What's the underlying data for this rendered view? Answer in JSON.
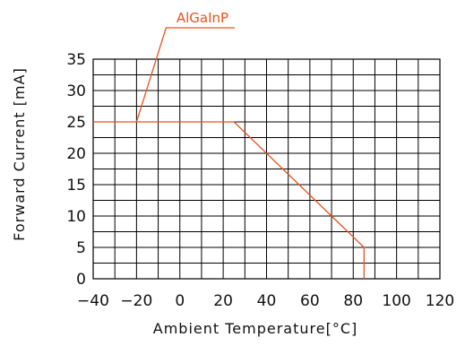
{
  "chart_data": {
    "type": "line",
    "title": "",
    "xlabel": "Ambient Temperature[°C]",
    "ylabel": "Forward Current [mA]",
    "xlim": [
      -40,
      120
    ],
    "ylim": [
      0,
      35
    ],
    "x_ticks": [
      -40,
      -20,
      0,
      20,
      40,
      60,
      80,
      100,
      120
    ],
    "x_tick_labels": [
      "−40",
      "−20",
      "0",
      "20",
      "40",
      "60",
      "80",
      "100",
      "120"
    ],
    "y_ticks": [
      0,
      5,
      10,
      15,
      20,
      25,
      30,
      35
    ],
    "y_tick_labels": [
      "0",
      "5",
      "10",
      "15",
      "20",
      "25",
      "30",
      "35"
    ],
    "grid": true,
    "series": [
      {
        "name": "AlGaInP",
        "color": "#e8531e",
        "x": [
          -40,
          25,
          85,
          85
        ],
        "y": [
          25,
          25,
          5,
          0
        ]
      }
    ],
    "annotations": [
      {
        "text": "AlGaInP",
        "points_to": {
          "x": -20,
          "y": 25
        },
        "color": "#e8531e"
      }
    ]
  }
}
